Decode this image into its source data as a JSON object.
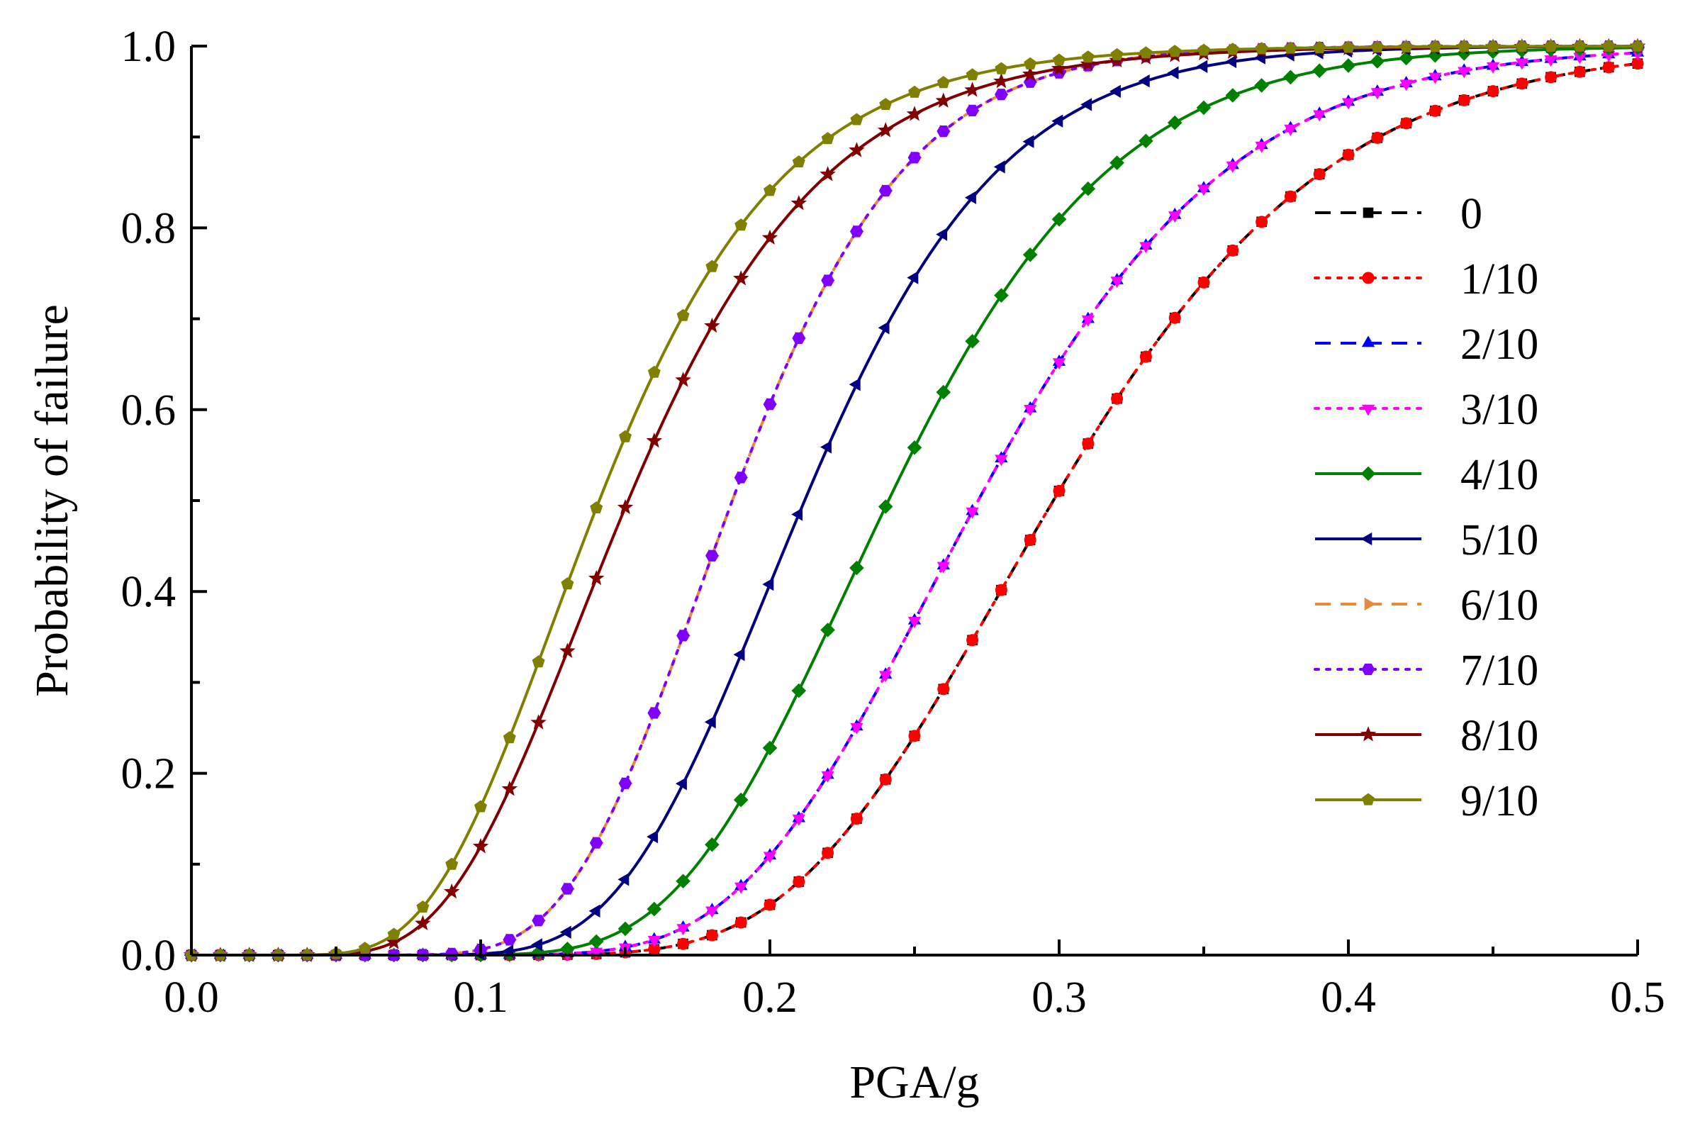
{
  "chart_data": {
    "type": "line",
    "xlabel": "PGA/g",
    "ylabel": "Probability of failure",
    "xlim": [
      0.0,
      0.5
    ],
    "ylim": [
      0.0,
      1.0
    ],
    "x_ticks": [
      "0.0",
      "0.1",
      "0.2",
      "0.3",
      "0.4",
      "0.5"
    ],
    "y_ticks": [
      "0.0",
      "0.2",
      "0.4",
      "0.6",
      "0.8",
      "1.0"
    ],
    "x_tick_values": [
      0.0,
      0.1,
      0.2,
      0.3,
      0.4,
      0.5
    ],
    "y_tick_values": [
      0.0,
      0.2,
      0.4,
      0.6,
      0.8,
      1.0
    ],
    "x": [
      0.0,
      0.01,
      0.02,
      0.03,
      0.04,
      0.05,
      0.06,
      0.07,
      0.08,
      0.09,
      0.1,
      0.11,
      0.12,
      0.13,
      0.14,
      0.15,
      0.16,
      0.17,
      0.18,
      0.19,
      0.2,
      0.21,
      0.22,
      0.23,
      0.24,
      0.25,
      0.26,
      0.27,
      0.28,
      0.29,
      0.3,
      0.31,
      0.32,
      0.33,
      0.34,
      0.35,
      0.36,
      0.37,
      0.38,
      0.39,
      0.4,
      0.41,
      0.42,
      0.43,
      0.44,
      0.45,
      0.46,
      0.47,
      0.48,
      0.49,
      0.5
    ],
    "legend_position": "right",
    "series": [
      {
        "name": "0",
        "color": "#000000",
        "dash": "dash",
        "marker": "square",
        "median": 0.298,
        "beta": 0.25
      },
      {
        "name": "1/10",
        "color": "#ff0000",
        "dash": "dot",
        "marker": "circle",
        "median": 0.298,
        "beta": 0.25
      },
      {
        "name": "2/10",
        "color": "#0000ff",
        "dash": "dash",
        "marker": "triangle-up",
        "median": 0.272,
        "beta": 0.25
      },
      {
        "name": "3/10",
        "color": "#ff00ff",
        "dash": "dot",
        "marker": "triangle-down",
        "median": 0.272,
        "beta": 0.25
      },
      {
        "name": "4/10",
        "color": "#008000",
        "dash": "solid",
        "marker": "diamond",
        "median": 0.241,
        "beta": 0.25
      },
      {
        "name": "5/10",
        "color": "#000080",
        "dash": "solid",
        "marker": "triangle-left",
        "median": 0.212,
        "beta": 0.25
      },
      {
        "name": "6/10",
        "color": "#e88a3a",
        "dash": "dash",
        "marker": "triangle-right",
        "median": 0.187,
        "beta": 0.25
      },
      {
        "name": "7/10",
        "color": "#7f00ff",
        "dash": "dot",
        "marker": "hexagon",
        "median": 0.187,
        "beta": 0.25
      },
      {
        "name": "8/10",
        "color": "#800000",
        "dash": "solid",
        "marker": "star",
        "median": 0.151,
        "beta": 0.35
      },
      {
        "name": "9/10",
        "color": "#808000",
        "dash": "solid",
        "marker": "pentagon",
        "median": 0.141,
        "beta": 0.35
      }
    ]
  }
}
